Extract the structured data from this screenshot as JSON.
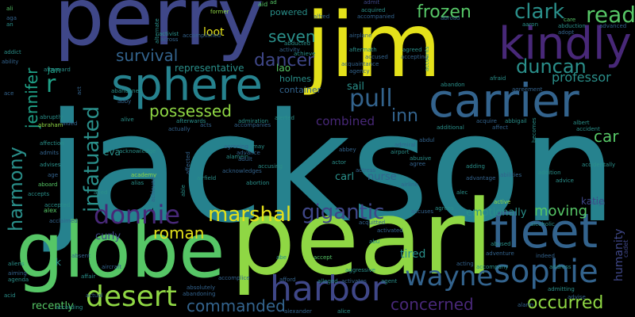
{
  "cloud": {
    "palette": {
      "yellow": "#e4e11a",
      "lime": "#8fd744",
      "green": "#56c666",
      "teal": "#2a8f8a",
      "cyan": "#26828e",
      "blue": "#33638d",
      "indigo": "#3f4788",
      "purple": "#482878",
      "dark": "#440154",
      "seagreen": "#1fa187"
    },
    "words": [
      {
        "text": "jackson"
      },
      {
        "text": "pearl"
      },
      {
        "text": "jim"
      },
      {
        "text": "perry"
      },
      {
        "text": "globe"
      },
      {
        "text": "sphere"
      },
      {
        "text": "carrier"
      },
      {
        "text": "fleet"
      },
      {
        "text": "harbor"
      },
      {
        "text": "kindly"
      },
      {
        "text": "sophie"
      },
      {
        "text": "wayne"
      },
      {
        "text": "desert"
      },
      {
        "text": "donnie"
      },
      {
        "text": "pull"
      },
      {
        "text": "infatuated"
      },
      {
        "text": "marshal"
      },
      {
        "text": "gigantic"
      },
      {
        "text": "harmony"
      },
      {
        "text": "jennifer"
      },
      {
        "text": "frozen"
      },
      {
        "text": "clark"
      },
      {
        "text": "read"
      },
      {
        "text": "duncan"
      },
      {
        "text": "survival"
      },
      {
        "text": "dancer"
      },
      {
        "text": "seven"
      },
      {
        "text": "possessed"
      },
      {
        "text": "inn"
      },
      {
        "text": "roman"
      },
      {
        "text": "moving"
      },
      {
        "text": "occurred"
      },
      {
        "text": "concerned"
      },
      {
        "text": "commanded"
      },
      {
        "text": "car"
      },
      {
        "text": "professor"
      },
      {
        "text": "humanity"
      },
      {
        "text": "loot"
      },
      {
        "text": "combined"
      },
      {
        "text": "r"
      },
      {
        "text": "representative"
      },
      {
        "text": "holmes"
      },
      {
        "text": "container"
      },
      {
        "text": "lao"
      },
      {
        "text": "sail"
      },
      {
        "text": "nurse"
      },
      {
        "text": "carl"
      },
      {
        "text": "tired"
      },
      {
        "text": "curly"
      },
      {
        "text": "eva"
      },
      {
        "text": "recently"
      },
      {
        "text": "emotionally"
      },
      {
        "text": "katie"
      },
      {
        "text": "jan"
      },
      {
        "text": "k"
      },
      {
        "text": "alex"
      },
      {
        "text": "cadet"
      },
      {
        "text": "powered"
      },
      {
        "text": "aid"
      },
      {
        "text": "ad"
      },
      {
        "text": "former"
      },
      {
        "text": "alfred"
      },
      {
        "text": "admit"
      },
      {
        "text": "accompanied"
      },
      {
        "text": "airplane"
      },
      {
        "text": "aftermath"
      },
      {
        "text": "accused"
      },
      {
        "text": "acquaintance"
      },
      {
        "text": "agency"
      },
      {
        "text": "abduction"
      },
      {
        "text": "adopt"
      },
      {
        "text": "care"
      },
      {
        "text": "advanced"
      },
      {
        "text": "afraid"
      },
      {
        "text": "alarm"
      },
      {
        "text": "aboard"
      },
      {
        "text": "accepts"
      },
      {
        "text": "abraham"
      },
      {
        "text": "academy"
      },
      {
        "text": "alias"
      },
      {
        "text": "according"
      },
      {
        "text": "actual"
      },
      {
        "text": "alexander"
      },
      {
        "text": "alice"
      },
      {
        "text": "accept"
      },
      {
        "text": "agent"
      },
      {
        "text": "activates"
      },
      {
        "text": "acid"
      },
      {
        "text": "abandoning"
      },
      {
        "text": "abe"
      },
      {
        "text": "afford"
      },
      {
        "text": "admitting"
      },
      {
        "text": "advise"
      },
      {
        "text": "abused"
      },
      {
        "text": "adventure"
      },
      {
        "text": "alcoholic"
      },
      {
        "text": "active"
      },
      {
        "text": "addition"
      },
      {
        "text": "accident"
      },
      {
        "text": "albert"
      },
      {
        "text": "affect"
      },
      {
        "text": "additional"
      },
      {
        "text": "accompanies"
      },
      {
        "text": "alerted"
      },
      {
        "text": "actually"
      },
      {
        "text": "affection"
      },
      {
        "text": "admits"
      },
      {
        "text": "advises"
      },
      {
        "text": "age"
      },
      {
        "text": "aged"
      },
      {
        "text": "agreeing"
      },
      {
        "text": "may"
      },
      {
        "text": "advance"
      },
      {
        "text": "alamein"
      },
      {
        "text": "adult"
      },
      {
        "text": "accusing"
      },
      {
        "text": "acknowledges"
      },
      {
        "text": "abortion"
      },
      {
        "text": "abbey"
      },
      {
        "text": "actor"
      },
      {
        "text": "admiral"
      },
      {
        "text": "airport"
      },
      {
        "text": "actress"
      },
      {
        "text": "abusive"
      },
      {
        "text": "agree"
      },
      {
        "text": "adding"
      },
      {
        "text": "advantage"
      },
      {
        "text": "accidentally"
      },
      {
        "text": "abdul"
      },
      {
        "text": "abbigail"
      },
      {
        "text": "ace"
      },
      {
        "text": "addict"
      },
      {
        "text": "ability"
      },
      {
        "text": "abandoned"
      },
      {
        "text": "abby"
      },
      {
        "text": "afterward"
      },
      {
        "text": "act"
      },
      {
        "text": "abruptly"
      },
      {
        "text": "aided"
      },
      {
        "text": "alive"
      },
      {
        "text": "accepting"
      },
      {
        "text": "abandon"
      },
      {
        "text": "ali"
      },
      {
        "text": "aga"
      },
      {
        "text": "an"
      },
      {
        "text": "activist"
      },
      {
        "text": "across"
      },
      {
        "text": "agreed"
      },
      {
        "text": "activity"
      },
      {
        "text": "abducted"
      },
      {
        "text": "achieve"
      },
      {
        "text": "accomplished"
      },
      {
        "text": "acquired"
      },
      {
        "text": "aaron"
      },
      {
        "text": "abroad"
      },
      {
        "text": "accounts"
      },
      {
        "text": "acquire"
      },
      {
        "text": "aggressive"
      },
      {
        "text": "activated"
      },
      {
        "text": "accompany"
      },
      {
        "text": "aircraft"
      },
      {
        "text": "affair"
      },
      {
        "text": "absent"
      },
      {
        "text": "aliens"
      },
      {
        "text": "aiming"
      },
      {
        "text": "agenda"
      },
      {
        "text": "acting"
      },
      {
        "text": "alec"
      },
      {
        "text": "accuses"
      },
      {
        "text": "agrees"
      },
      {
        "text": "acquitted"
      },
      {
        "text": "alternate"
      },
      {
        "text": "absolutely"
      },
      {
        "text": "alleged"
      },
      {
        "text": "abilities"
      },
      {
        "text": "advice"
      },
      {
        "text": "affected"
      },
      {
        "text": "airfield"
      },
      {
        "text": "achieved"
      },
      {
        "text": "able"
      },
      {
        "text": "acts"
      },
      {
        "text": "afterwards"
      },
      {
        "text": "acclaimed"
      },
      {
        "text": "accepted"
      },
      {
        "text": "vega"
      },
      {
        "text": "becomes"
      },
      {
        "text": "agreement"
      },
      {
        "text": "acknowledge"
      },
      {
        "text": "airline"
      },
      {
        "text": "abu"
      },
      {
        "text": "accomplice"
      },
      {
        "text": "admiration"
      },
      {
        "text": "indeed"
      },
      {
        "text": "address"
      },
      {
        "text": "acquires"
      },
      {
        "text": "ahead"
      },
      {
        "text": "accidents"
      },
      {
        "text": "aim"
      },
      {
        "text": "adam"
      },
      {
        "text": "ada"
      }
    ]
  }
}
